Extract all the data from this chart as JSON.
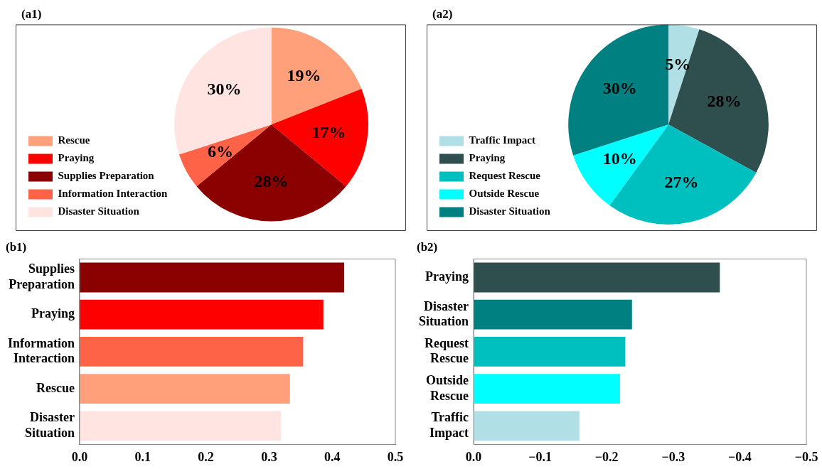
{
  "chart_data": [
    {
      "type": "pie",
      "title": "(a1)",
      "categories": [
        "Rescue",
        "Praying",
        "Supplies Preparation",
        "Information Interaction",
        "Disaster Situation"
      ],
      "values": [
        19,
        17,
        28,
        6,
        30
      ],
      "colors": [
        "#ffa07a",
        "#ff0000",
        "#8b0000",
        "#ff6347",
        "#ffe4e1"
      ],
      "value_labels": [
        "19%",
        "17%",
        "28%",
        "6%",
        "30%"
      ],
      "legend": "bottom left"
    },
    {
      "type": "pie",
      "title": "(a2)",
      "categories": [
        "Traffic Impact",
        "Praying",
        "Request Rescue",
        "Outside Rescue",
        "Disaster Situation"
      ],
      "values": [
        5,
        28,
        27,
        10,
        30
      ],
      "colors": [
        "#b0e0e6",
        "#2f4f4f",
        "#00bfbf",
        "#00ffff",
        "#008080"
      ],
      "value_labels": [
        "5%",
        "28%",
        "27%",
        "10%",
        "30%"
      ],
      "legend": "bottom left"
    },
    {
      "type": "bar",
      "title": "(b1)",
      "orientation": "horizontal",
      "categories": [
        "Supplies Preparation",
        "Praying",
        "Information Interaction",
        "Rescue",
        "Disaster Situation"
      ],
      "values": [
        0.419,
        0.386,
        0.354,
        0.333,
        0.319
      ],
      "colors": [
        "#8b0000",
        "#ff0000",
        "#ff6347",
        "#ffa07a",
        "#ffe4e1"
      ],
      "xlim": [
        0,
        0.5
      ],
      "xticks": [
        {
          "value": 0,
          "label": "0.0"
        },
        {
          "value": 0.1,
          "label": "0.1"
        },
        {
          "value": 0.2,
          "label": "0.2"
        },
        {
          "value": 0.3,
          "label": "0.3"
        },
        {
          "value": 0.4,
          "label": "0.4"
        },
        {
          "value": 0.5,
          "label": "0.5"
        }
      ],
      "grid": false,
      "legend": false
    },
    {
      "type": "bar",
      "title": "(b2)",
      "orientation": "horizontal",
      "categories": [
        "Praying",
        "Disaster Situation",
        "Request Rescue",
        "Outside Rescue",
        "Traffic Impact"
      ],
      "values": [
        -0.37,
        -0.238,
        -0.228,
        -0.22,
        -0.159
      ],
      "colors": [
        "#2f4f4f",
        "#008080",
        "#00bfbf",
        "#00ffff",
        "#b0e0e6"
      ],
      "xlim": [
        0,
        -0.5
      ],
      "xticks": [
        {
          "value": 0,
          "label": "0.0"
        },
        {
          "value": -0.1,
          "label": "−0.1"
        },
        {
          "value": -0.2,
          "label": "−0.2"
        },
        {
          "value": -0.3,
          "label": "−0.3"
        },
        {
          "value": -0.4,
          "label": "−0.4"
        },
        {
          "value": -0.5,
          "label": "−0.5"
        }
      ],
      "grid": false,
      "legend": false
    }
  ]
}
